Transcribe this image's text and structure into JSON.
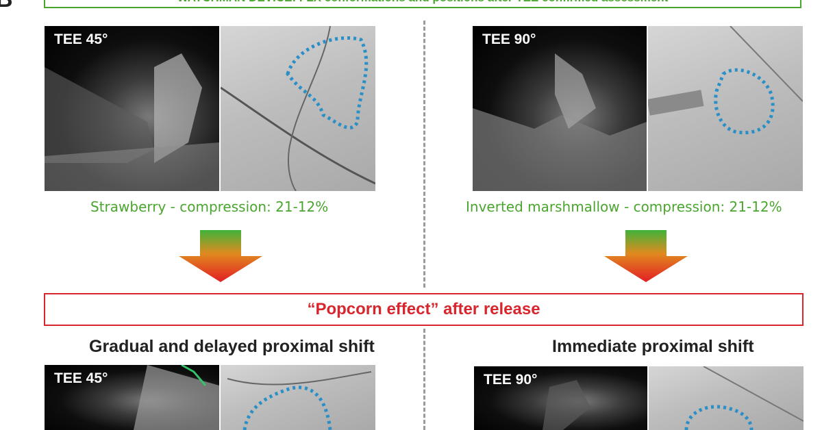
{
  "header": {
    "panel_letter": "B",
    "top_banner": "WATCHMAN DEVICE: FLX conformations and positions after TEE confirmed assessment"
  },
  "left": {
    "top_tee_label": "TEE 45°",
    "caption": "Strawberry - compression: 21-12%",
    "heading": "Gradual and delayed proximal shift",
    "bottom_tee_label": "TEE 45°"
  },
  "right": {
    "top_tee_label": "TEE 90°",
    "caption": "Inverted marshmallow - compression: 21-12%",
    "heading": "Immediate proximal shift",
    "bottom_tee_label": "TEE 90°"
  },
  "popcorn_banner": "“Popcorn effect” after release",
  "colors": {
    "green": "#4aa52e",
    "red": "#d7262e",
    "outline_blue": "#2a8fc7"
  }
}
